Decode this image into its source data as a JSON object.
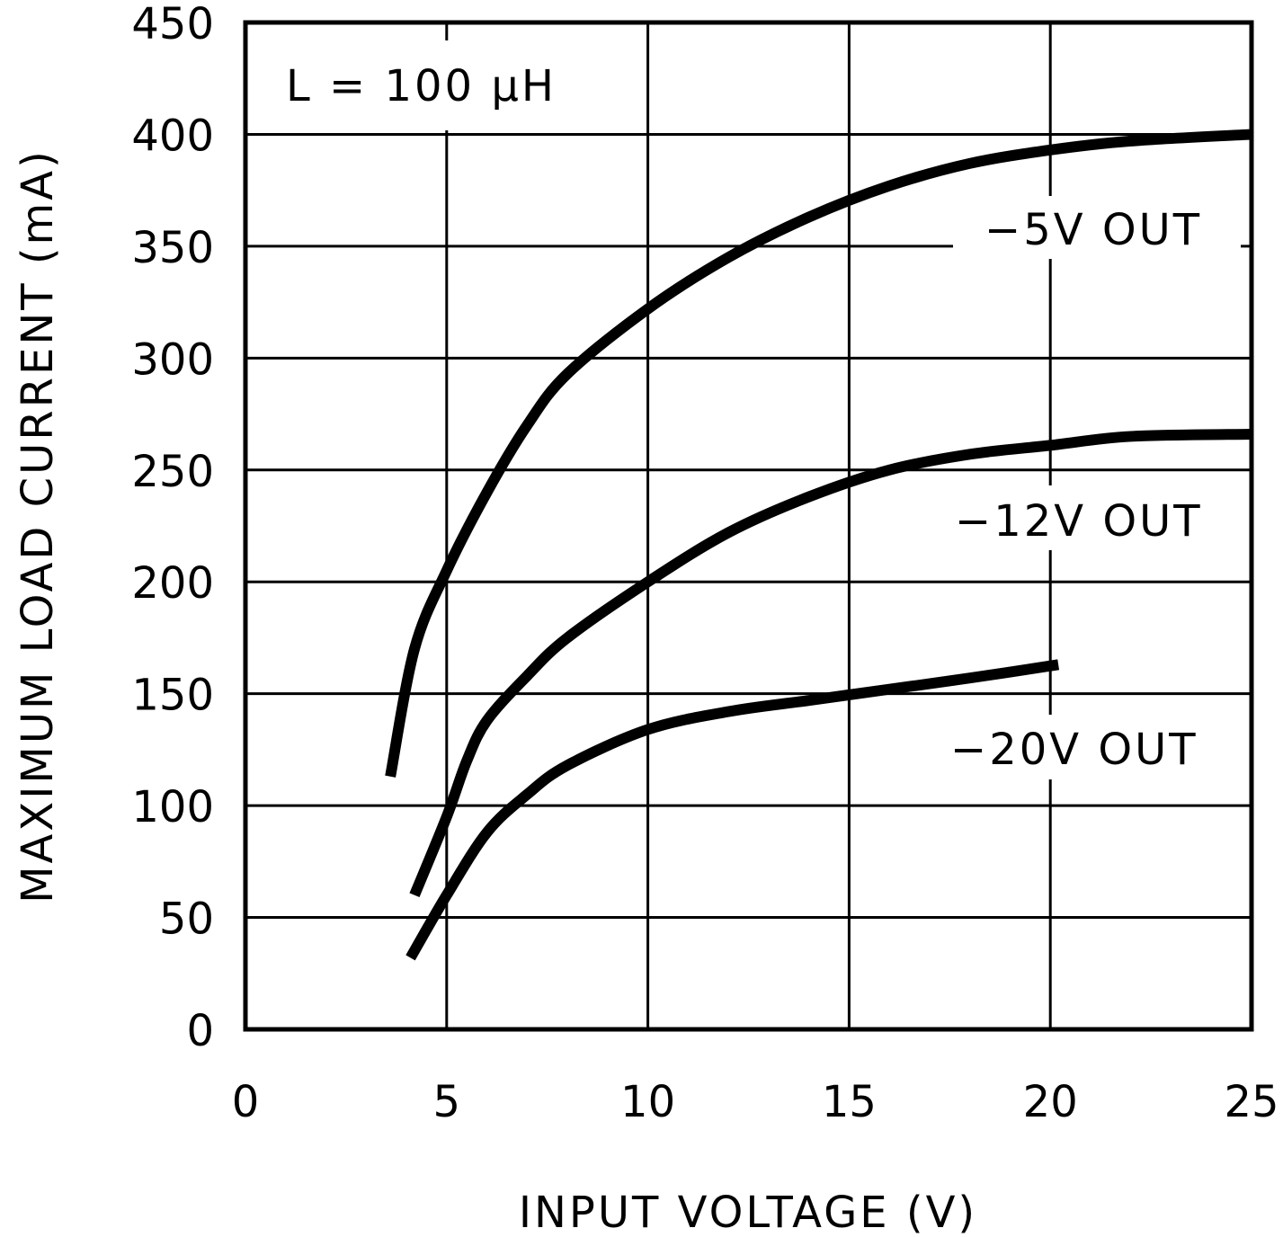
{
  "chart_data": {
    "type": "line",
    "title": "",
    "xlabel": "INPUT VOLTAGE (V)",
    "ylabel": "MAXIMUM LOAD CURRENT (mA)",
    "xlim": [
      0,
      25
    ],
    "ylim": [
      0,
      450
    ],
    "xticks": [
      0,
      5,
      10,
      15,
      20,
      25
    ],
    "yticks": [
      0,
      50,
      100,
      150,
      200,
      250,
      300,
      350,
      400,
      450
    ],
    "grid": true,
    "annotation": "L = 100 µH",
    "series": [
      {
        "name": "-5V OUT",
        "x": [
          3.6,
          4.2,
          5,
          6,
          7,
          8,
          10,
          12,
          14,
          16,
          18,
          20,
          22,
          25
        ],
        "y": [
          113,
          170,
          205,
          240,
          270,
          293,
          322,
          345,
          363,
          377,
          387,
          393,
          397,
          400
        ]
      },
      {
        "name": "-12V OUT",
        "x": [
          4.2,
          5,
          5.5,
          6,
          7,
          8,
          10,
          12,
          14,
          16,
          18,
          20,
          22,
          25
        ],
        "y": [
          60,
          95,
          120,
          138,
          158,
          175,
          200,
          222,
          238,
          250,
          257,
          261,
          265,
          266
        ]
      },
      {
        "name": "-20V OUT",
        "x": [
          4.1,
          5,
          6,
          7,
          8,
          10,
          12,
          14,
          16,
          18,
          20.2
        ],
        "y": [
          32,
          60,
          88,
          105,
          118,
          134,
          142,
          147,
          152,
          157,
          163
        ]
      }
    ]
  },
  "labels": {
    "annotation": "L = 100 µH",
    "xlabel": "INPUT VOLTAGE (V)",
    "ylabel": "MAXIMUM LOAD CURRENT (mA)",
    "s1": "−5V OUT",
    "s2": "−12V OUT",
    "s3": "−20V OUT"
  }
}
